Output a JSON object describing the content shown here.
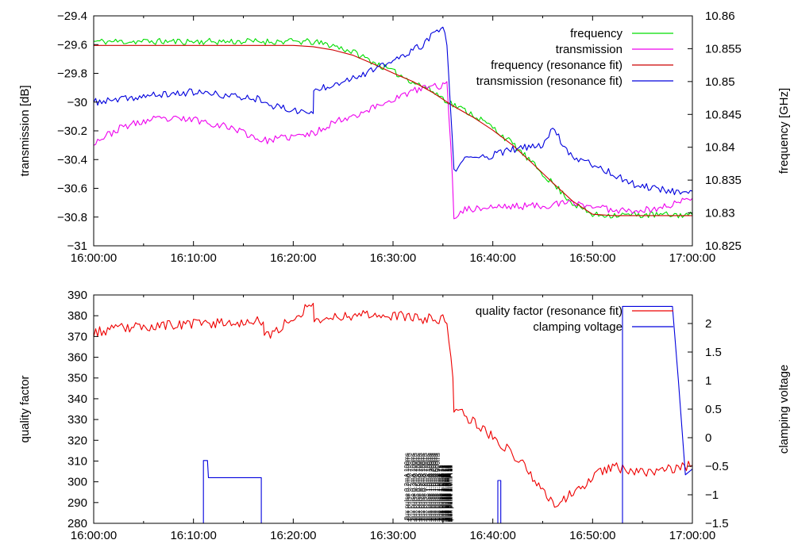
{
  "chart_data": [
    {
      "type": "line",
      "title": "",
      "xlabel": "",
      "ylabel": "transmission [dB]",
      "y2label": "frequency [GHz]",
      "xlim": [
        0,
        60
      ],
      "ylim": [
        -31,
        -29.4
      ],
      "y2lim": [
        10.825,
        10.86
      ],
      "xtick_values": [
        0,
        10,
        20,
        30,
        40,
        50,
        60
      ],
      "xtick_labels": [
        "16:00:00",
        "16:10:00",
        "16:20:00",
        "16:30:00",
        "16:40:00",
        "16:50:00",
        "17:00:00"
      ],
      "ytick_values": [
        -29.4,
        -29.6,
        -29.8,
        -30,
        -30.2,
        -30.4,
        -30.6,
        -30.8,
        -31
      ],
      "ytick_labels": [
        "-29.4",
        "-29.6",
        "-29.8",
        "-30",
        "-30.2",
        "-30.4",
        "-30.6",
        "-30.8",
        "-31"
      ],
      "y2tick_values": [
        10.86,
        10.855,
        10.85,
        10.845,
        10.84,
        10.835,
        10.83,
        10.825
      ],
      "y2tick_labels": [
        "10.86",
        "10.855",
        "10.85",
        "10.845",
        "10.84",
        "10.835",
        "10.83",
        "10.825"
      ],
      "legend_position": "top-right",
      "series": [
        {
          "name": "frequency",
          "axis": "y2",
          "color": "#00dd00",
          "noise": 0.0005,
          "seed": 11,
          "x": [
            0,
            5,
            10,
            15,
            20,
            22,
            24,
            26,
            28,
            30,
            32,
            34,
            36,
            38,
            40,
            42,
            44,
            46,
            48,
            50,
            52,
            56,
            60
          ],
          "y": [
            10.8561,
            10.8561,
            10.8561,
            10.8561,
            10.8561,
            10.856,
            10.8555,
            10.8545,
            10.853,
            10.8515,
            10.85,
            10.8485,
            10.8465,
            10.845,
            10.843,
            10.8405,
            10.8375,
            10.8345,
            10.8315,
            10.8297,
            10.8297,
            10.8297,
            10.8297
          ]
        },
        {
          "name": "transmission",
          "axis": "y",
          "color": "#ee00ee",
          "noise": 0.025,
          "seed": 23,
          "x": [
            0,
            3,
            6,
            10,
            14,
            17,
            22,
            24,
            27,
            30,
            33,
            35.4,
            35.8,
            36.1,
            37,
            40,
            45,
            48,
            52,
            56,
            60
          ],
          "y": [
            -30.28,
            -30.17,
            -30.12,
            -30.12,
            -30.18,
            -30.27,
            -30.22,
            -30.14,
            -30.07,
            -29.98,
            -29.9,
            -29.88,
            -30.3,
            -30.8,
            -30.75,
            -30.73,
            -30.72,
            -30.7,
            -30.75,
            -30.75,
            -30.67
          ]
        },
        {
          "name": "frequency (resonance fit)",
          "axis": "y2",
          "color": "#cc0000",
          "noise": 0,
          "seed": 0,
          "x": [
            0,
            5,
            10,
            15,
            20,
            22,
            24,
            26,
            28,
            30,
            32,
            34,
            36,
            38,
            40,
            42,
            44,
            46,
            48,
            50,
            52,
            56,
            60
          ],
          "y": [
            10.8555,
            10.8555,
            10.8555,
            10.8555,
            10.8555,
            10.8553,
            10.8548,
            10.854,
            10.8527,
            10.8513,
            10.85,
            10.8483,
            10.8463,
            10.8446,
            10.8426,
            10.8403,
            10.8375,
            10.8346,
            10.8318,
            10.8298,
            10.8296,
            10.8296,
            10.8296
          ]
        },
        {
          "name": "transmission (resonance fit)",
          "axis": "y",
          "color": "#0000dd",
          "noise": 0.025,
          "seed": 37,
          "x": [
            0,
            2,
            5,
            10,
            14,
            17,
            18,
            22,
            22.05,
            25,
            28,
            31,
            33,
            35,
            35.4,
            36.1,
            37,
            40,
            42,
            45,
            46,
            47,
            48,
            50,
            54,
            58,
            60
          ],
          "y": [
            -30,
            -29.99,
            -29.96,
            -29.93,
            -29.96,
            -29.98,
            -30.03,
            -30.08,
            -29.92,
            -29.85,
            -29.78,
            -29.68,
            -29.6,
            -29.47,
            -29.6,
            -30.48,
            -30.4,
            -30.37,
            -30.33,
            -30.3,
            -30.17,
            -30.29,
            -30.38,
            -30.43,
            -30.57,
            -30.62,
            -30.62
          ]
        }
      ]
    },
    {
      "type": "line",
      "title": "",
      "xlabel": "",
      "ylabel": "quality factor",
      "y2label": "clamping voltage",
      "xlim": [
        0,
        60
      ],
      "ylim": [
        280,
        390
      ],
      "y2lim": [
        -1.5,
        2.5
      ],
      "xtick_values": [
        0,
        10,
        20,
        30,
        40,
        50,
        60
      ],
      "xtick_labels": [
        "16:00:00",
        "16:10:00",
        "16:20:00",
        "16:30:00",
        "16:40:00",
        "16:50:00",
        "17:00:00"
      ],
      "ytick_values": [
        390,
        380,
        370,
        360,
        350,
        340,
        330,
        320,
        310,
        300,
        290,
        280
      ],
      "ytick_labels": [
        "390",
        "380",
        "370",
        "360",
        "350",
        "340",
        "330",
        "320",
        "310",
        "300",
        "290",
        "280"
      ],
      "y2tick_values": [
        2,
        1.5,
        1,
        0.5,
        0,
        -0.5,
        -1,
        -1.5
      ],
      "y2tick_labels": [
        "2",
        "1.5",
        "1",
        "0.5",
        "0",
        "-0.5",
        "-1",
        "-1.5"
      ],
      "legend_position": "top-right",
      "series": [
        {
          "name": "quality factor (resonance fit)",
          "axis": "y",
          "color": "#ee0000",
          "noise": 2.5,
          "seed": 53,
          "x": [
            0,
            3,
            6,
            10,
            14,
            17,
            17.1,
            22,
            22.1,
            25,
            28,
            32,
            35,
            35.4,
            36,
            36.1,
            38,
            40,
            43,
            46,
            47.5,
            49,
            50,
            52,
            55,
            58,
            60
          ],
          "y": [
            372,
            374,
            375,
            376,
            377,
            377,
            369,
            386,
            378,
            380,
            381,
            379,
            378,
            378,
            350,
            336,
            329,
            322,
            309,
            289,
            293,
            298,
            303,
            307,
            305,
            306,
            308
          ]
        },
        {
          "name": "clamping voltage",
          "axis": "y2",
          "color": "#0000dd",
          "noise": 0,
          "seed": 0,
          "x": [
            0,
            11,
            11,
            11.3,
            11.4,
            11.5,
            16.8,
            16.8,
            40.5,
            40.5,
            40.8,
            40.8,
            53,
            53,
            53.1,
            56.5,
            58,
            58.6,
            59.3,
            60
          ],
          "y": [
            -1.6,
            -1.6,
            -0.4,
            -0.4,
            -0.4,
            -0.7,
            -0.7,
            -1.6,
            -1.6,
            -0.75,
            -0.75,
            -1.6,
            -1.6,
            2.3,
            2.3,
            2.3,
            2.3,
            1,
            -0.65,
            -0.55
          ]
        }
      ],
      "annotations": {
        "texts": [
          "flux pulse 0.2mA 100ms",
          "flux pulse 0.2mA 100ms",
          "flux pulse 0.3mA 100ms",
          "flux pulse 0.3mA 100ms",
          "flux pulse 0.5mA 100ms",
          "flux pulse 0.5mA 100ms",
          "flux pulse 0.8mA 100ms",
          "flux pulse 0.8mA 100ms",
          "flux pulse 1.0mA 100ms",
          "flux pulse 1.0mA 100ms",
          "flux pulse 1.0mA 200ms",
          "flux pulse 1.0mA 200ms",
          "flux pulse 1.0mA 500ms",
          "flux pulse 1.0mA 500ms",
          "flux pulse 1.0mA 1s",
          "flux pulse 1.0mA 1s",
          "flux pulse 1.5mA 1s",
          "flux pulse 1.5mA 1s",
          "flux pulse 2.0mA 1s",
          "flux pulse 2.0mA 1s",
          "flux pulse 2.0mA 1s",
          "flux pulse 2.0mA 1s",
          "flux pulse 2.0mA 1s",
          "flux pulse 2.0mA 1s",
          "flux pulse 2.0mA 1s",
          "flux pulse 2.0mA 1s",
          "flux pulse 2.0mA 1s",
          "flux pulse 2.0mA 1s",
          "flux pulse 2.0mA 1s",
          "flux pulse 2.0mA 1s"
        ],
        "times": [
          31.6,
          31.8,
          32.2,
          32.4,
          32.7,
          32.9,
          33.2,
          33.4,
          33.7,
          33.9,
          34.1,
          34.3,
          34.5,
          34.7,
          34.9,
          35.0,
          35.1,
          35.2,
          35.3,
          35.4,
          35.5,
          35.55,
          35.6,
          35.65,
          35.7,
          35.75,
          35.8,
          35.85,
          35.9,
          35.95
        ],
        "marker_color": "#ee0000"
      }
    }
  ]
}
